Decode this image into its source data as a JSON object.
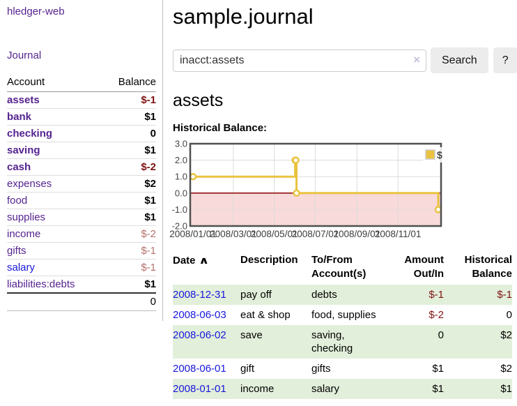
{
  "app": {
    "brand": "hledger-web"
  },
  "sidebar": {
    "journal_link": "Journal",
    "accounts_table": {
      "header_account": "Account",
      "header_balance": "Balance",
      "rows": [
        {
          "name": "assets",
          "balance": "$-1",
          "level": 1,
          "bold": true,
          "neg": "strong"
        },
        {
          "name": "bank",
          "balance": "$1",
          "level": 2,
          "bold": true,
          "neg": null
        },
        {
          "name": "checking",
          "balance": "0",
          "level": 3,
          "bold": true,
          "neg": null
        },
        {
          "name": "saving",
          "balance": "$1",
          "level": 3,
          "bold": true,
          "neg": null
        },
        {
          "name": "cash",
          "balance": "$-2",
          "level": 2,
          "bold": true,
          "neg": "strong"
        },
        {
          "name": "expenses",
          "balance": "$2",
          "level": 1,
          "bold": false,
          "neg": null
        },
        {
          "name": "food",
          "balance": "$1",
          "level": 2,
          "bold": false,
          "neg": null
        },
        {
          "name": "supplies",
          "balance": "$1",
          "level": 2,
          "bold": false,
          "neg": null
        },
        {
          "name": "income",
          "balance": "$-2",
          "level": 1,
          "bold": false,
          "neg": "soft"
        },
        {
          "name": "gifts",
          "balance": "$-1",
          "level": 2,
          "bold": false,
          "neg": "soft"
        },
        {
          "name": "salary",
          "balance": "$-1",
          "level": 2,
          "bold": false,
          "neg": "soft",
          "link_color": "blue"
        },
        {
          "name": "liabilities:debts",
          "balance": "$1",
          "level": 1,
          "bold": false,
          "neg": null
        }
      ],
      "total": "0"
    }
  },
  "main": {
    "title": "sample.journal",
    "search": {
      "value": "inacct:assets",
      "clear_icon": "×",
      "button_label": "Search",
      "help_label": "?"
    },
    "account_heading": "assets",
    "chart_label": "Historical Balance:"
  },
  "chart_data": {
    "type": "line",
    "step": true,
    "title": "Historical Balance",
    "series": [
      {
        "name": "$",
        "color": "#e9c340",
        "points": [
          [
            "2008-01-01",
            1.0
          ],
          [
            "2008-06-01",
            2.0
          ],
          [
            "2008-06-02",
            2.0
          ],
          [
            "2008-06-03",
            0.0
          ],
          [
            "2008-12-31",
            -1.0
          ]
        ]
      }
    ],
    "x_range": [
      "2008-01-01",
      "2008-12-31"
    ],
    "x_ticks": [
      "2008/01/01",
      "2008/03/01",
      "2008/05/01",
      "2008/07/01",
      "2008/09/01",
      "2008/11/01"
    ],
    "y_ticks": [
      3.0,
      2.0,
      1.0,
      0.0,
      -1.0,
      -2.0
    ],
    "ylim": [
      -2.0,
      3.0
    ],
    "grid": true,
    "negative_region_color": "#f9dada",
    "zero_line_color": "#8b0000",
    "border_color": "#4f4f4f",
    "legend": {
      "label": "$",
      "position": "top-right"
    }
  },
  "register": {
    "headers": {
      "date": "Date",
      "description": "Description",
      "accounts": "To/From Account(s)",
      "amount": "Amount Out/In",
      "balance": "Historical Balance"
    },
    "sort_icon": "∧",
    "rows": [
      {
        "date": "2008-12-31",
        "description": "pay off",
        "accounts": "debts",
        "amount": "$-1",
        "balance": "$-1"
      },
      {
        "date": "2008-06-03",
        "description": "eat & shop",
        "accounts": "food, supplies",
        "amount": "$-2",
        "balance": "0"
      },
      {
        "date": "2008-06-02",
        "description": "save",
        "accounts": "saving, checking",
        "amount": "0",
        "balance": "$2"
      },
      {
        "date": "2008-06-01",
        "description": "gift",
        "accounts": "gifts",
        "amount": "$1",
        "balance": "$2"
      },
      {
        "date": "2008-01-01",
        "description": "income",
        "accounts": "salary",
        "amount": "$1",
        "balance": "$1"
      }
    ]
  }
}
